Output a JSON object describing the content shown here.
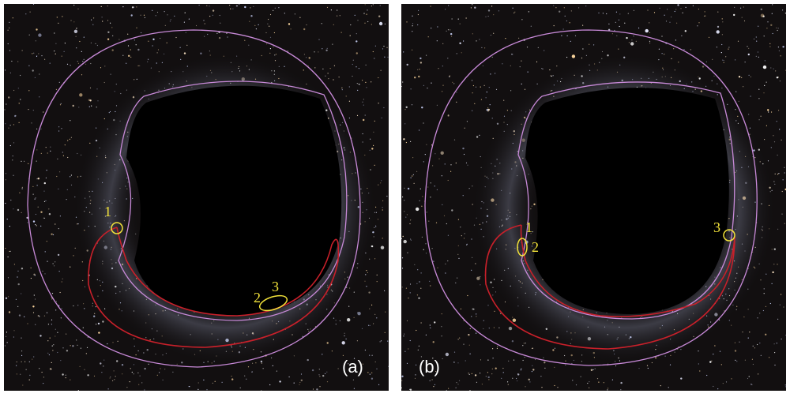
{
  "panels": [
    {
      "label": "(a)",
      "markers": [
        "1",
        "2",
        "3"
      ]
    },
    {
      "label": "(b)",
      "markers": [
        "1",
        "2",
        "3"
      ]
    }
  ]
}
